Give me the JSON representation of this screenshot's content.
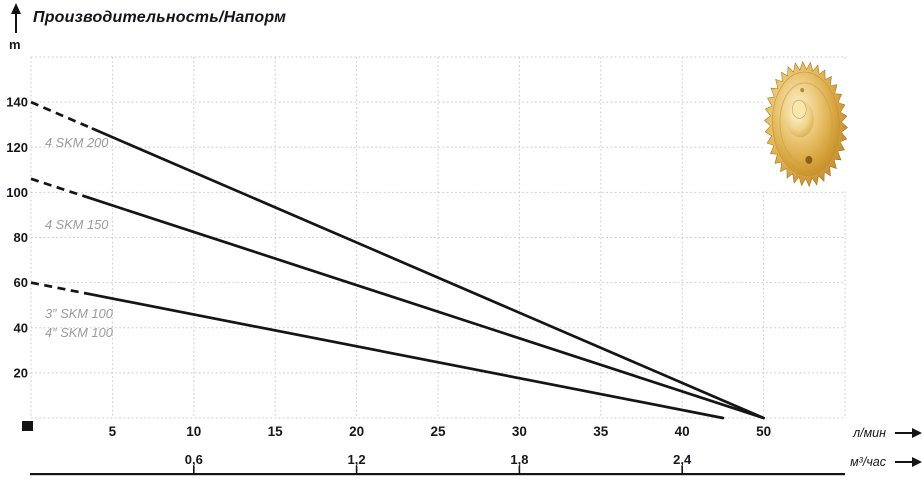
{
  "header": {
    "title": "Производительность/Напорм",
    "y_unit_label": "m"
  },
  "chart_data": {
    "type": "line",
    "title": "Производительность/Напорм",
    "ylabel": "m",
    "ylim": [
      0,
      160
    ],
    "grid": true,
    "y_ticks": [
      140,
      120,
      100,
      80,
      60,
      40,
      20
    ],
    "x_axis_primary": {
      "unit": "л/мин",
      "ticks": [
        "5",
        "10",
        "15",
        "20",
        "25",
        "30",
        "35",
        "40",
        "50"
      ]
    },
    "x_axis_secondary": {
      "unit": "м³/час",
      "ticks": [
        {
          "label": "0,6",
          "at_lmin": 10
        },
        {
          "label": "1,2",
          "at_lmin": 20
        },
        {
          "label": "1,8",
          "at_lmin": 30
        },
        {
          "label": "2,4",
          "at_lmin": 40
        }
      ]
    },
    "series": [
      {
        "name": "4 SKM 200",
        "label_lines": [
          "4 SKM 200"
        ],
        "points_lmin_m": [
          [
            0,
            140
          ],
          [
            50,
            0
          ]
        ],
        "dashed_until_lmin": 3.8
      },
      {
        "name": "4 SKM 150",
        "label_lines": [
          "4 SKM 150"
        ],
        "points_lmin_m": [
          [
            0,
            106
          ],
          [
            50,
            0
          ]
        ],
        "dashed_until_lmin": 3.6
      },
      {
        "name": "SKM 100",
        "label_lines": [
          "3″ SKM 100",
          "4″ SKM 100"
        ],
        "points_lmin_m": [
          [
            0,
            60
          ],
          [
            45,
            0
          ]
        ],
        "dashed_until_lmin": 3.6
      }
    ]
  },
  "colors": {
    "curve": "#151515",
    "grid_dots": "#c9c9c9",
    "tick_text": "#16161f",
    "series_label": "#9b9b9b",
    "title_text": "#14141c",
    "axis_line": "#141414",
    "gold_highlight": "#faf0cd",
    "gold_mid": "#e0ae48",
    "gold_deep": "#b97c1e"
  }
}
